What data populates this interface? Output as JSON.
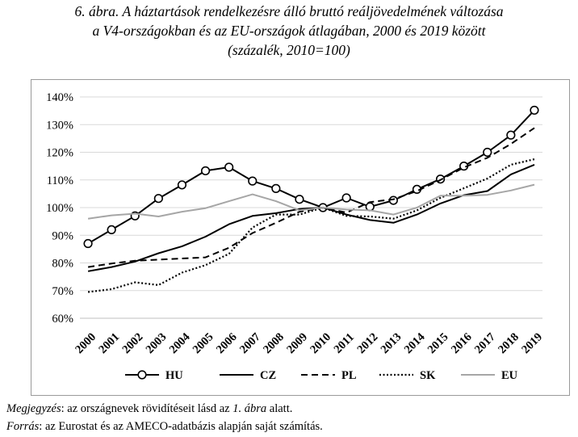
{
  "figure": {
    "title_line1": "6. ábra. A háztartások rendelkezésre álló bruttó reáljövedelmének változása",
    "title_line2": "a V4-országokban és az EU-országok átlagában, 2000 és 2019 között",
    "title_line3": "(százalék, 2010=100)"
  },
  "notes": {
    "note_label": "Megjegyzés",
    "note_text_a": ": az országnevek rövidítéseit lásd az ",
    "note_ref": "1. ábra",
    "note_text_b": " alatt.",
    "source_label": "Forrás",
    "source_text": ": az Eurostat és az AMECO-adatbázis alapján saját számítás."
  },
  "chart_data": {
    "type": "line",
    "title": "",
    "xlabel": "",
    "ylabel": "",
    "x": [
      "2000",
      "2001",
      "2002",
      "2003",
      "2004",
      "2005",
      "2006",
      "2007",
      "2008",
      "2009",
      "2010",
      "2011",
      "2012",
      "2013",
      "2014",
      "2015",
      "2016",
      "2017",
      "2018",
      "2019"
    ],
    "y_ticks": [
      60,
      70,
      80,
      90,
      100,
      110,
      120,
      130,
      140
    ],
    "y_tick_labels": [
      "60%",
      "70%",
      "80%",
      "90%",
      "100%",
      "110%",
      "120%",
      "130%",
      "140%"
    ],
    "ylim": [
      60,
      140
    ],
    "grid": "horizontal",
    "legend_position": "bottom",
    "series": [
      {
        "name": "HU",
        "style": "solid-markers",
        "color": "#000000",
        "values": [
          87,
          92,
          97,
          103.3,
          108.2,
          113.3,
          114.6,
          109.6,
          106.9,
          103.0,
          100,
          103.5,
          100.3,
          102.6,
          106.6,
          110.3,
          115.0,
          120.0,
          126.2,
          135.2
        ]
      },
      {
        "name": "CZ",
        "style": "solid",
        "color": "#000000",
        "values": [
          77,
          78.5,
          80.5,
          83.5,
          86,
          89.5,
          94,
          97,
          98,
          99.5,
          100,
          97.5,
          95.5,
          94.5,
          97.5,
          101.5,
          104.5,
          106,
          112,
          115.5
        ]
      },
      {
        "name": "PL",
        "style": "dashed",
        "color": "#000000",
        "values": [
          78.5,
          79.8,
          80.8,
          81.2,
          81.6,
          82,
          85.5,
          90.8,
          94.5,
          98.5,
          100,
          98.2,
          102.0,
          103.0,
          106.0,
          110.0,
          114.5,
          118.0,
          123.0,
          128.8
        ]
      },
      {
        "name": "SK",
        "style": "dotted",
        "color": "#000000",
        "values": [
          69.5,
          70.5,
          73.0,
          72.0,
          76.5,
          79.2,
          83.3,
          92.8,
          97.5,
          97.5,
          100,
          97.0,
          96.8,
          96.0,
          99.0,
          103.5,
          107.0,
          110.5,
          115.5,
          117.5
        ]
      },
      {
        "name": "EU",
        "style": "solid",
        "color": "#a6a6a6",
        "values": [
          96,
          97.2,
          97.8,
          96.8,
          98.5,
          99.8,
          102.3,
          104.8,
          102.3,
          99.0,
          100,
          99.3,
          99.0,
          97.5,
          100.0,
          104.3,
          104.3,
          104.6,
          106.2,
          108.3
        ]
      }
    ]
  }
}
